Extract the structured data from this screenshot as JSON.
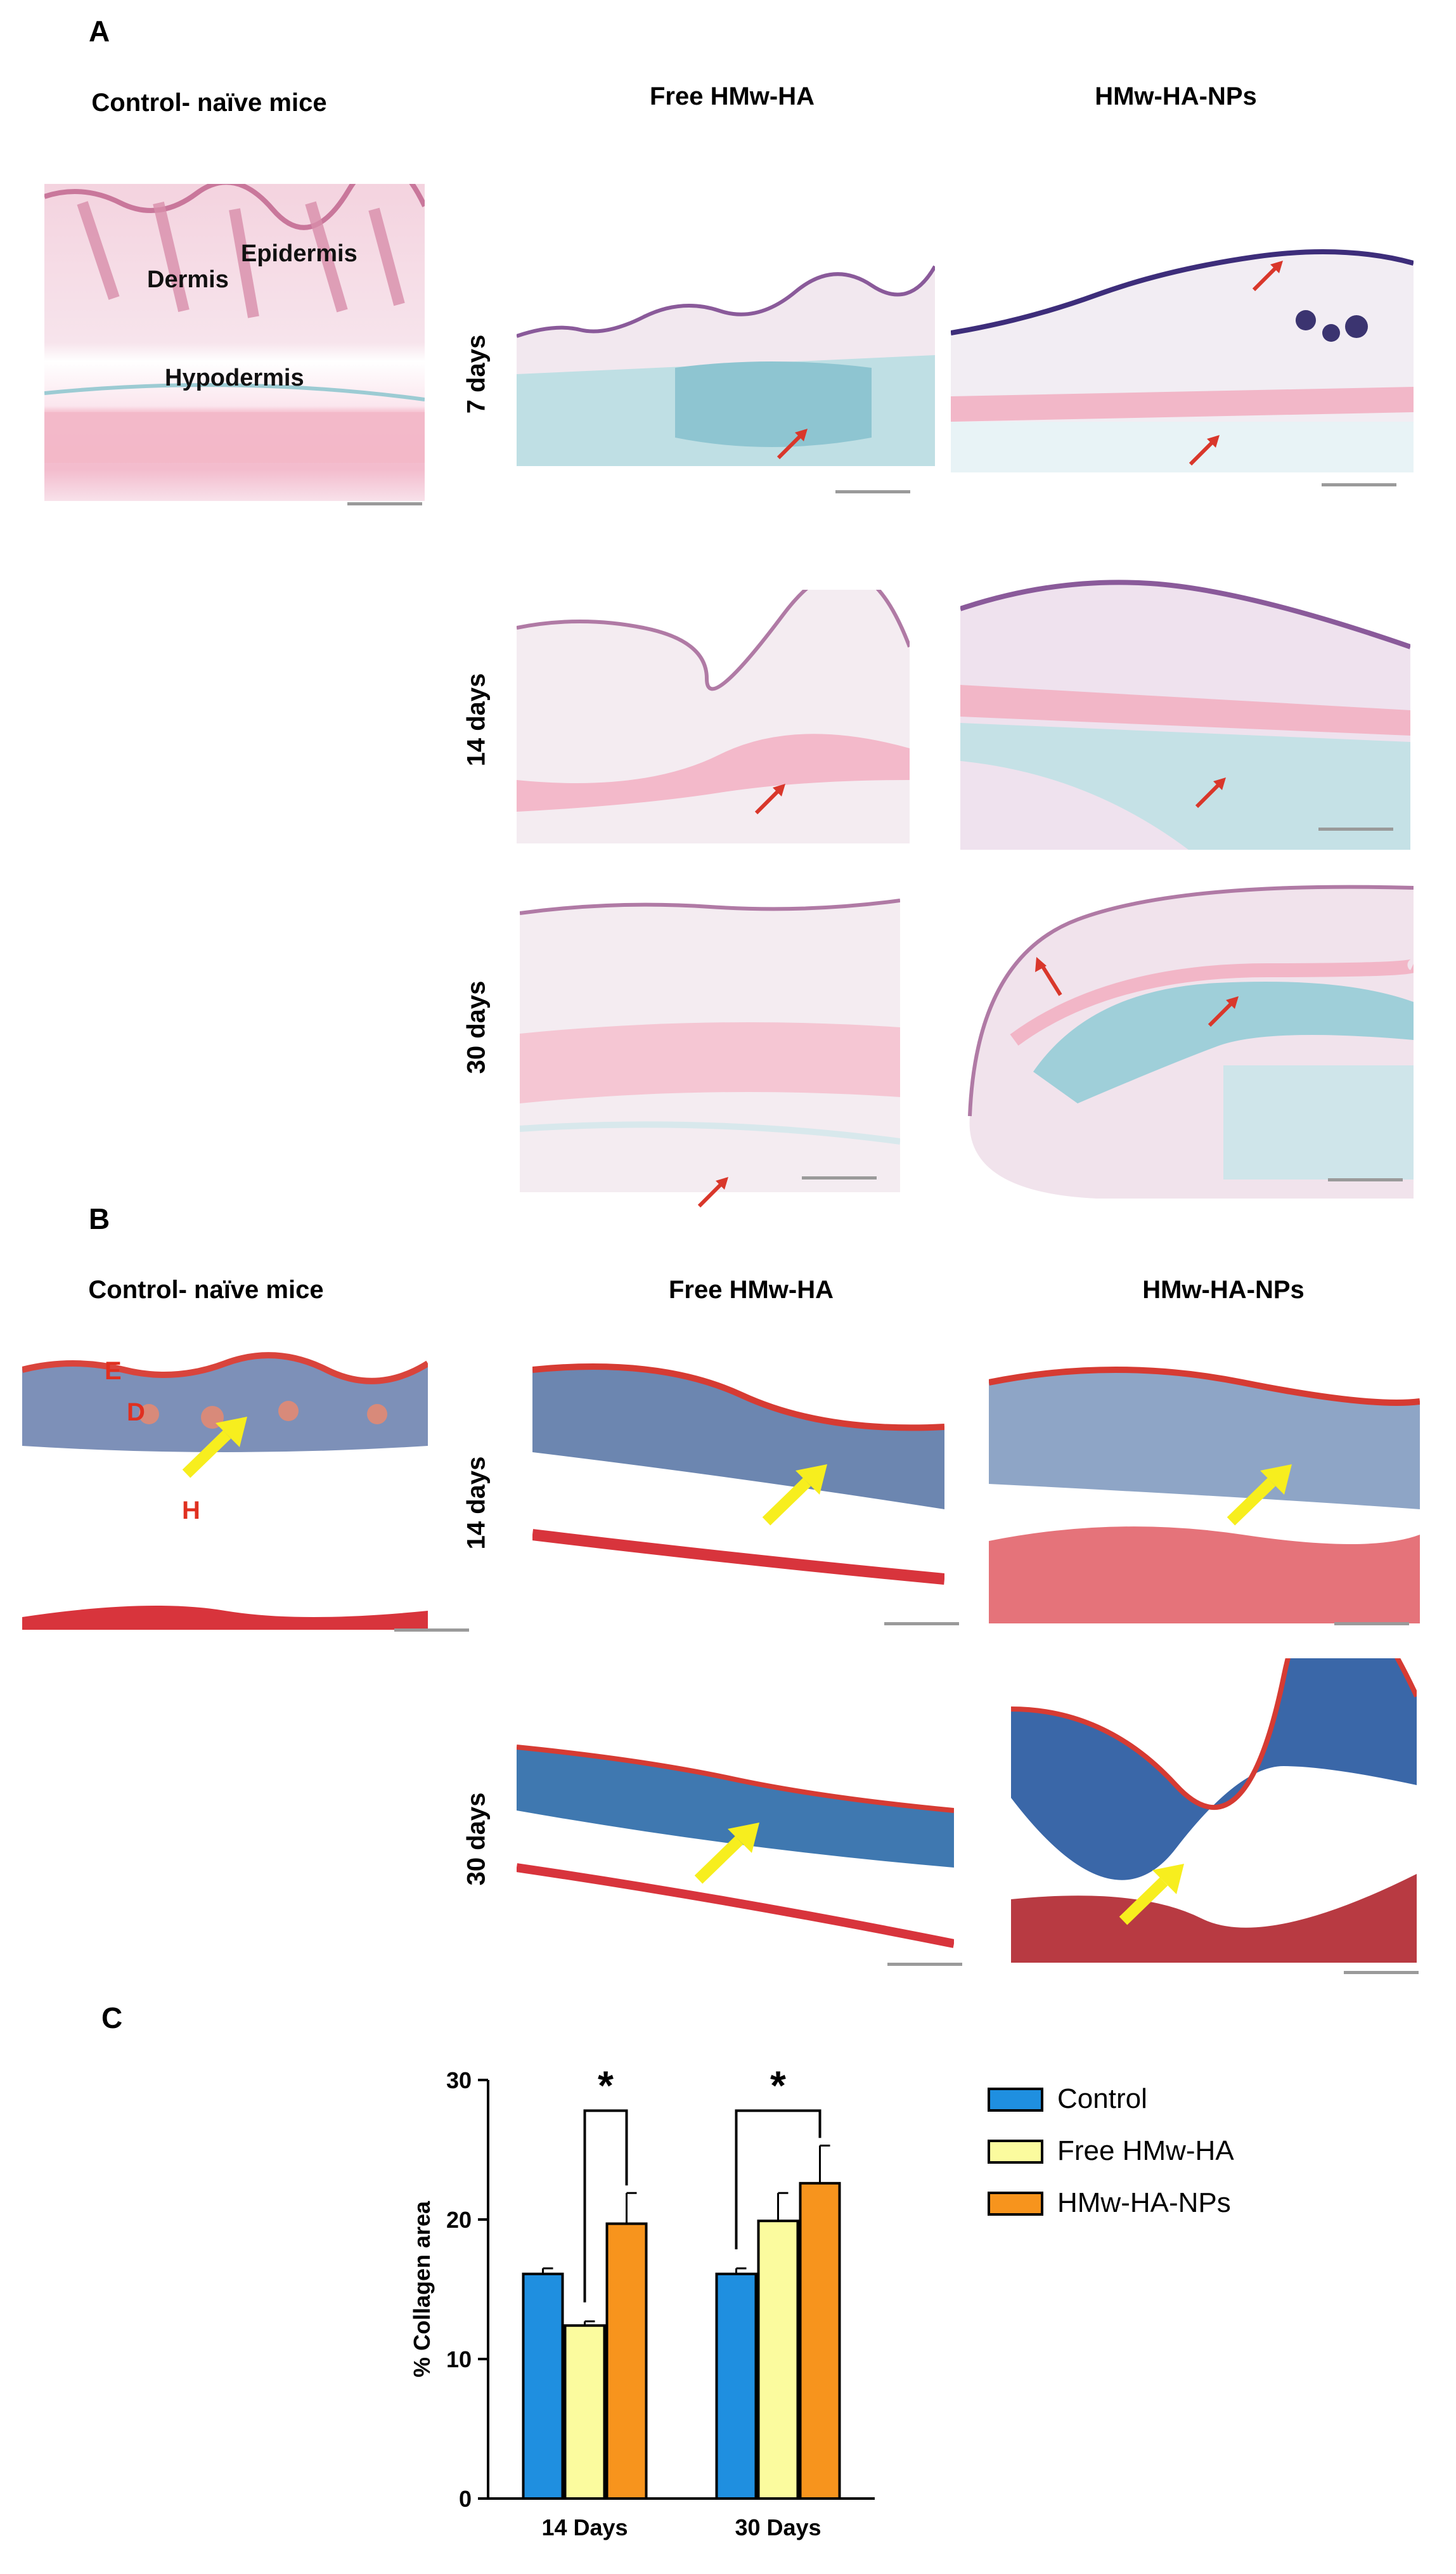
{
  "panels": {
    "a": {
      "letter": "A",
      "columns": [
        "Control- naïve mice",
        "Free HMw-HA",
        "HMw-HA-NPs"
      ],
      "rows": [
        "7 days",
        "14 days",
        "30 days"
      ],
      "tissue_labels": {
        "epidermis": "Epidermis",
        "dermis": "Dermis",
        "hypodermis": "Hypodermis"
      }
    },
    "b": {
      "letter": "B",
      "columns": [
        "Control- naïve mice",
        "Free HMw-HA",
        "HMw-HA-NPs"
      ],
      "rows": [
        "14 days",
        "30 days"
      ],
      "tissue_labels": {
        "e": "E",
        "d": "D",
        "h": "H"
      }
    },
    "c": {
      "letter": "C"
    }
  },
  "colors": {
    "control": "#1f8fe0",
    "free": "#fbfb9e",
    "nps": "#f7941d",
    "he_pink": "#f2c6d4",
    "he_blue": "#a8d2dc",
    "mt_blue": "#3f7fb4",
    "mt_red": "#e0474a",
    "arrow_red": "#d9372b",
    "arrow_yellow": "#f7ee1e"
  },
  "chart_data": {
    "type": "bar",
    "categories": [
      "14 Days",
      "30 Days"
    ],
    "series": [
      {
        "name": "Control",
        "values": [
          16.1,
          16.1
        ],
        "errors": [
          0.4,
          0.4
        ]
      },
      {
        "name": "Free HMw-HA",
        "values": [
          12.4,
          19.9
        ],
        "errors": [
          0.3,
          2.0
        ]
      },
      {
        "name": "HMw-HA-NPs",
        "values": [
          19.7,
          22.6
        ],
        "errors": [
          2.2,
          2.7
        ]
      }
    ],
    "ylabel": "% Collagen area",
    "xlabel": "",
    "ylim": [
      0,
      30
    ],
    "yticks": [
      0,
      10,
      20,
      30
    ],
    "significance": [
      {
        "category": "14 Days",
        "from": "Free HMw-HA",
        "to": "HMw-HA-NPs",
        "label": "*"
      },
      {
        "category": "30 Days",
        "from": "Control",
        "to": "HMw-HA-NPs",
        "label": "*"
      }
    ],
    "legend_position": "right"
  }
}
